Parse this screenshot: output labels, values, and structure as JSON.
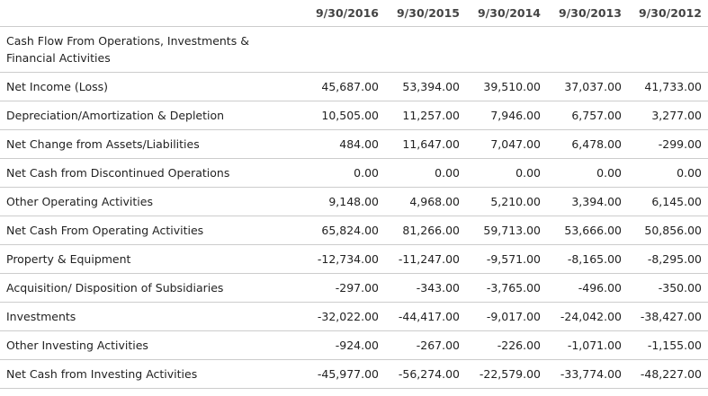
{
  "table": {
    "columns": [
      "9/30/2016",
      "9/30/2015",
      "9/30/2014",
      "9/30/2013",
      "9/30/2012"
    ],
    "section_title": "Cash Flow From Operations, Investments & Financial Activities",
    "rows": [
      {
        "label": "Net Income (Loss)",
        "values": [
          "45,687.00",
          "53,394.00",
          "39,510.00",
          "37,037.00",
          "41,733.00"
        ]
      },
      {
        "label": "Depreciation/Amortization & Depletion",
        "values": [
          "10,505.00",
          "11,257.00",
          "7,946.00",
          "6,757.00",
          "3,277.00"
        ]
      },
      {
        "label": "Net Change from Assets/Liabilities",
        "values": [
          "484.00",
          "11,647.00",
          "7,047.00",
          "6,478.00",
          "-299.00"
        ]
      },
      {
        "label": "Net Cash from Discontinued Operations",
        "values": [
          "0.00",
          "0.00",
          "0.00",
          "0.00",
          "0.00"
        ]
      },
      {
        "label": "Other Operating Activities",
        "values": [
          "9,148.00",
          "4,968.00",
          "5,210.00",
          "3,394.00",
          "6,145.00"
        ]
      },
      {
        "label": "Net Cash From Operating Activities",
        "values": [
          "65,824.00",
          "81,266.00",
          "59,713.00",
          "53,666.00",
          "50,856.00"
        ]
      },
      {
        "label": "Property & Equipment",
        "values": [
          "-12,734.00",
          "-11,247.00",
          "-9,571.00",
          "-8,165.00",
          "-8,295.00"
        ]
      },
      {
        "label": "Acquisition/ Disposition of Subsidiaries",
        "values": [
          "-297.00",
          "-343.00",
          "-3,765.00",
          "-496.00",
          "-350.00"
        ]
      },
      {
        "label": "Investments",
        "values": [
          "-32,022.00",
          "-44,417.00",
          "-9,017.00",
          "-24,042.00",
          "-38,427.00"
        ]
      },
      {
        "label": "Other Investing Activities",
        "values": [
          "-924.00",
          "-267.00",
          "-226.00",
          "-1,071.00",
          "-1,155.00"
        ]
      },
      {
        "label": "Net Cash from Investing Activities",
        "values": [
          "-45,977.00",
          "-56,274.00",
          "-22,579.00",
          "-33,774.00",
          "-48,227.00"
        ]
      }
    ]
  }
}
